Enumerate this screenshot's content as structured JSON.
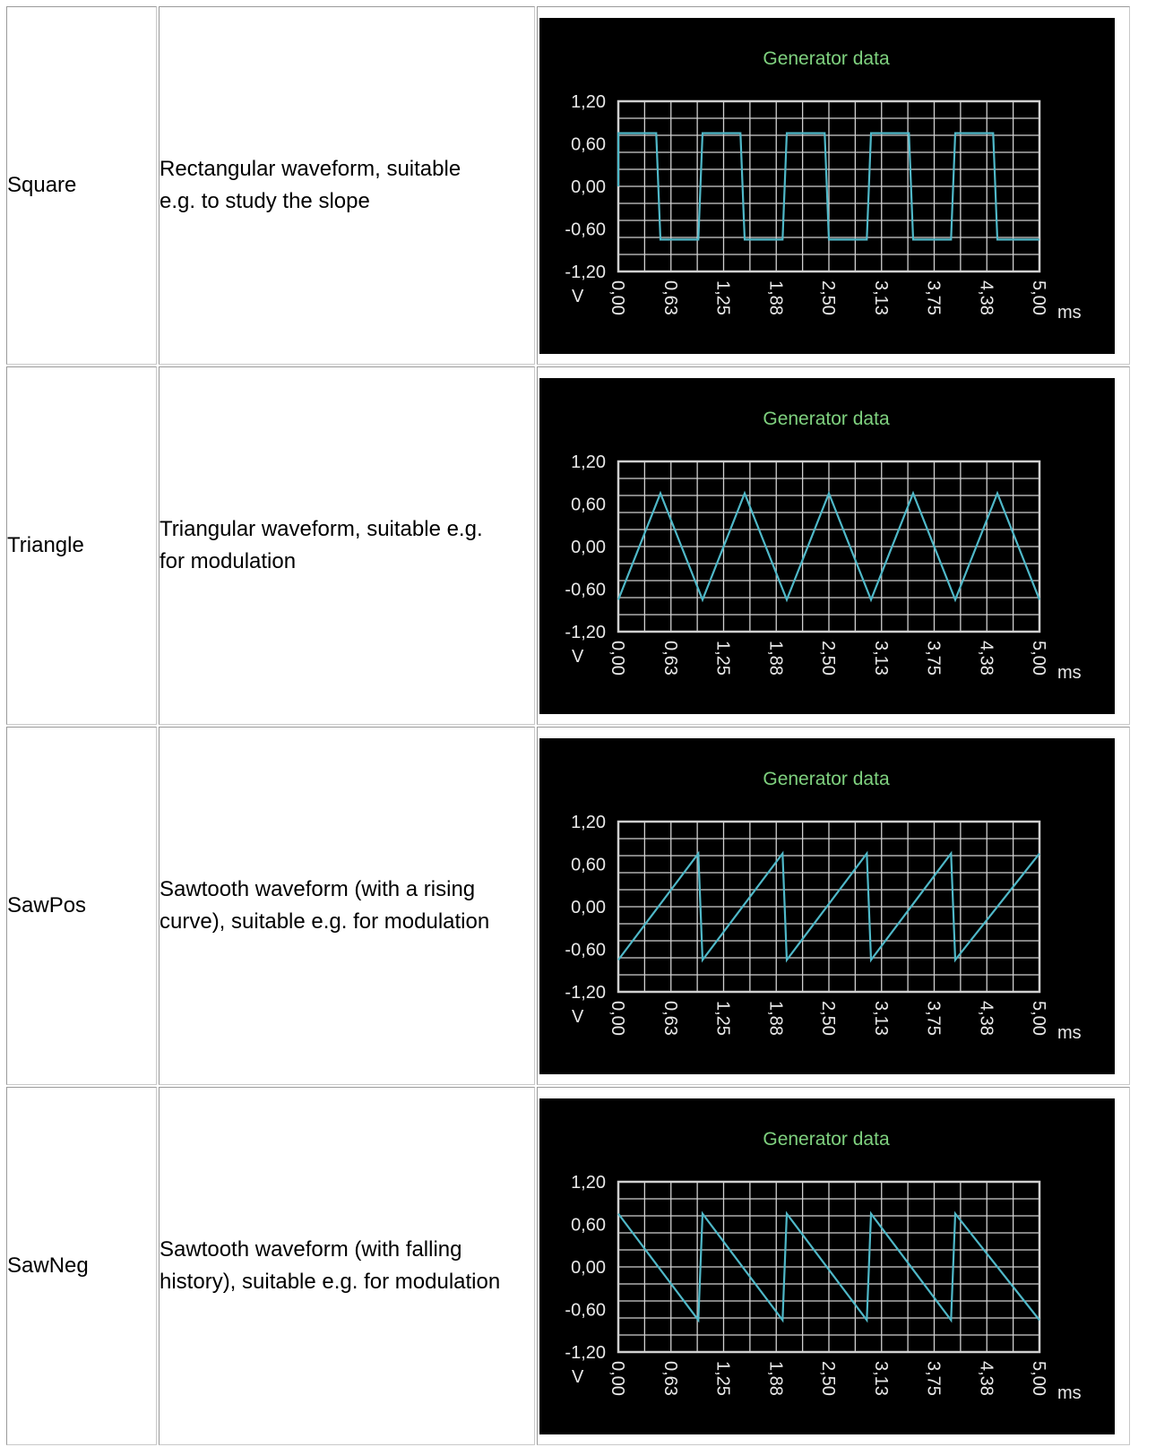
{
  "rows": [
    {
      "name": "Square",
      "description_lines": [
        "Rectangular waveform, suitable",
        "e.g. to study the slope"
      ]
    },
    {
      "name": "Triangle",
      "description_lines": [
        "Triangular waveform, suitable e.g.",
        "for modulation"
      ]
    },
    {
      "name": "SawPos",
      "description_lines": [
        "Sawtooth waveform (with a rising",
        "curve), suitable e.g. for modulation"
      ]
    },
    {
      "name": "SawNeg",
      "description_lines": [
        "Sawtooth waveform (with falling",
        "history), suitable e.g. for modulation"
      ]
    }
  ],
  "colors": {
    "background": "#000000",
    "title": "#7fd17f",
    "grid": "#d0d0d0",
    "trace": "#4fb8c8",
    "ticks": "#e8e8e8"
  },
  "chart_data": [
    {
      "type": "line",
      "title": "Generator data",
      "xlabel": "ms",
      "ylabel": "V",
      "xlim": [
        0,
        5.0
      ],
      "ylim": [
        -1.2,
        1.2
      ],
      "x_ticks": [
        "0,00",
        "0,63",
        "1,25",
        "1,88",
        "2,50",
        "3,13",
        "3,75",
        "4,38",
        "5,00"
      ],
      "y_ticks": [
        "1,20",
        "0,60",
        "0,00",
        "-0,60",
        "-1,20"
      ],
      "grid": true,
      "series": [
        {
          "x": [
            0,
            0,
            0.05,
            0.45,
            0.5,
            0.95,
            1.0,
            1.45,
            1.5,
            1.95,
            2.0,
            2.45,
            2.5,
            2.95,
            3.0,
            3.45,
            3.5,
            3.95,
            4.0,
            4.45,
            4.5,
            4.95,
            5.0
          ],
          "y": [
            0,
            0.75,
            0.75,
            0.75,
            -0.75,
            -0.75,
            0.75,
            0.75,
            -0.75,
            -0.75,
            0.75,
            0.75,
            -0.75,
            -0.75,
            0.75,
            0.75,
            -0.75,
            -0.75,
            0.75,
            0.75,
            -0.75,
            -0.75,
            -0.75
          ]
        }
      ]
    },
    {
      "type": "line",
      "title": "Generator data",
      "xlabel": "ms",
      "ylabel": "V",
      "xlim": [
        0,
        5.0
      ],
      "ylim": [
        -1.2,
        1.2
      ],
      "x_ticks": [
        "0,00",
        "0,63",
        "1,25",
        "1,88",
        "2,50",
        "3,13",
        "3,75",
        "4,38",
        "5,00"
      ],
      "y_ticks": [
        "1,20",
        "0,60",
        "0,00",
        "-0,60",
        "-1,20"
      ],
      "grid": true,
      "series": [
        {
          "x": [
            0,
            0.5,
            1.0,
            1.5,
            2.0,
            2.5,
            3.0,
            3.5,
            4.0,
            4.5,
            5.0
          ],
          "y": [
            -0.75,
            0.75,
            -0.75,
            0.75,
            -0.75,
            0.75,
            -0.75,
            0.75,
            -0.75,
            0.75,
            -0.75
          ]
        }
      ]
    },
    {
      "type": "line",
      "title": "Generator data",
      "xlabel": "ms",
      "ylabel": "V",
      "xlim": [
        0,
        5.0
      ],
      "ylim": [
        -1.2,
        1.2
      ],
      "x_ticks": [
        "0,00",
        "0,63",
        "1,25",
        "1,88",
        "2,50",
        "3,13",
        "3,75",
        "4,38",
        "5,00"
      ],
      "y_ticks": [
        "1,20",
        "0,60",
        "0,00",
        "-0,60",
        "-1,20"
      ],
      "grid": true,
      "series": [
        {
          "x": [
            0,
            0.95,
            1.0,
            1.95,
            2.0,
            2.95,
            3.0,
            3.95,
            4.0,
            5.0
          ],
          "y": [
            -0.75,
            0.75,
            -0.75,
            0.75,
            -0.75,
            0.75,
            -0.75,
            0.75,
            -0.75,
            0.75
          ]
        }
      ]
    },
    {
      "type": "line",
      "title": "Generator data",
      "xlabel": "ms",
      "ylabel": "V",
      "xlim": [
        0,
        5.0
      ],
      "ylim": [
        -1.2,
        1.2
      ],
      "x_ticks": [
        "0,00",
        "0,63",
        "1,25",
        "1,88",
        "2,50",
        "3,13",
        "3,75",
        "4,38",
        "5,00"
      ],
      "y_ticks": [
        "1,20",
        "0,60",
        "0,00",
        "-0,60",
        "-1,20"
      ],
      "grid": true,
      "series": [
        {
          "x": [
            0,
            0.95,
            1.0,
            1.95,
            2.0,
            2.95,
            3.0,
            3.95,
            4.0,
            5.0
          ],
          "y": [
            0.75,
            -0.75,
            0.75,
            -0.75,
            0.75,
            -0.75,
            0.75,
            -0.75,
            0.75,
            -0.75
          ]
        }
      ]
    }
  ]
}
